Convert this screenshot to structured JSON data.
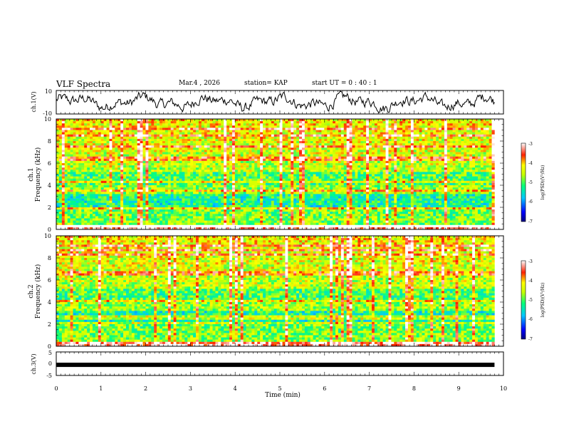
{
  "header": {
    "title": "VLF Spectra",
    "date": "Mar.4 , 2026",
    "station": "station= KAP",
    "start_ut": "start UT = 0 : 40 : 1"
  },
  "chart_data": [
    {
      "type": "line",
      "id": "ch1-waveform",
      "ylabel": "ch.1(V)",
      "ylim": [
        -10,
        10
      ],
      "yticks": [
        "10",
        "-10"
      ],
      "xlim": [
        0,
        10
      ],
      "description_of_signal": "noisy oscillating voltage trace",
      "samples": 500
    },
    {
      "type": "heatmap",
      "id": "ch1-spectrogram",
      "ylabel": "ch.1\nFrequency (kHz)",
      "ylabel_line1": "ch.1",
      "ylabel_line2": "Frequency (kHz)",
      "ylim": [
        0,
        10
      ],
      "yticks": [
        "0",
        "2",
        "4",
        "6",
        "8",
        "10"
      ],
      "xlim": [
        0,
        9.8
      ],
      "colorbar": {
        "label": "log(PSD)(V²/Hz)",
        "range": [
          -7,
          -3
        ],
        "ticks": [
          "-3",
          "-4",
          "-5",
          "-6",
          "-7"
        ]
      }
    },
    {
      "type": "heatmap",
      "id": "ch2-spectrogram",
      "ylabel_line1": "ch.2",
      "ylabel_line2": "Frequency (kHz)",
      "ylim": [
        0,
        10
      ],
      "yticks": [
        "0",
        "2",
        "4",
        "6",
        "8",
        "10"
      ],
      "xlim": [
        0,
        9.8
      ],
      "colorbar": {
        "label": "log(PSD)(V²/Hz)",
        "range": [
          -7,
          -3
        ],
        "ticks": [
          "-3",
          "-4",
          "-5",
          "-6",
          "-7"
        ]
      }
    },
    {
      "type": "line",
      "id": "ch3-waveform",
      "ylabel": "ch.3(V)",
      "ylim": [
        -5,
        5
      ],
      "yticks": [
        "5",
        "0",
        "-5"
      ],
      "xlim": [
        0,
        10
      ],
      "level": -0.5
    }
  ],
  "xaxis": {
    "label": "Time (min)",
    "range": [
      0,
      10
    ],
    "ticks": [
      "0",
      "1",
      "2",
      "3",
      "4",
      "5",
      "6",
      "7",
      "8",
      "9",
      "10"
    ]
  },
  "colors": {
    "axis": "#000000",
    "trace": "#000000",
    "background": "#ffffff"
  }
}
